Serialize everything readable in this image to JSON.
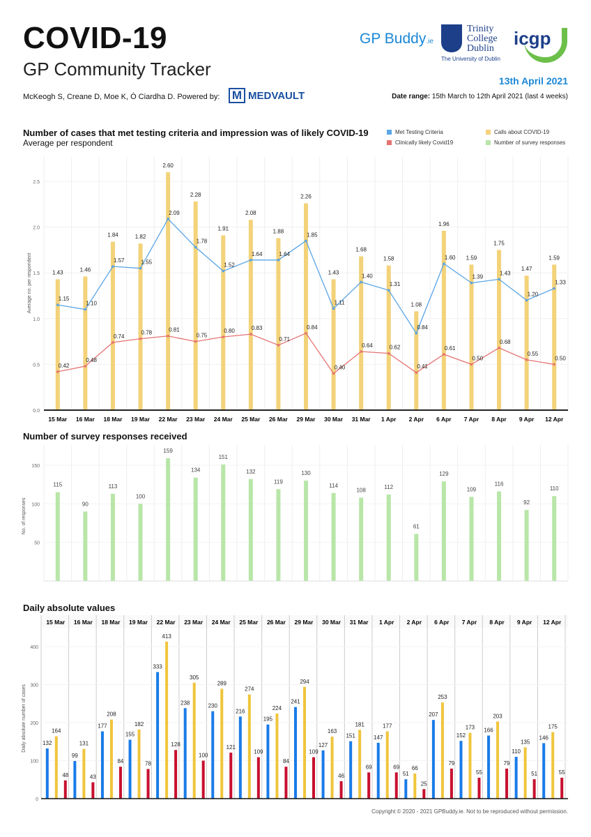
{
  "header": {
    "title": "COVID-19",
    "subtitle": "GP Community Tracker",
    "authors": "McKeogh S, Creane D, Moe K, Ó Ciardha D.  Powered by:",
    "powered_by_logo": "MEDVAULT",
    "powered_by_mark": "M",
    "report_date": "13th April 2021",
    "date_range_label": "Date range:",
    "date_range_value": "15th March to 12th April 2021 (last 4 weeks)",
    "logos": {
      "gpbuddy": "GP Buddy",
      "gpbuddy_suffix": ".ie",
      "tcd": "Trinity College Dublin",
      "tcd_sub": "The University of Dublin",
      "icgp": "icgp"
    }
  },
  "colors": {
    "blue": "#5aa5e6",
    "red": "#e57373",
    "yellow": "#f3d27a",
    "green": "#b8e6a8",
    "abs_blue": "#1a7be8",
    "abs_yellow": "#f0c53c",
    "abs_red": "#c8102e"
  },
  "legend": [
    "Met Testing Criteria",
    "Clinically likely Covid19",
    "Calls about COVID-19",
    "Number of survey responses"
  ],
  "footer": {
    "copyright": "Copyright © 2020 - 2021 GPBuddy.ie. Not to be reproduced without permission."
  },
  "chart_data": [
    {
      "type": "bar+line",
      "title": "Number of cases that met testing criteria and impression was of likely COVID-19",
      "subtitle": "Average per respondent",
      "ylabel": "Average no. per respondent",
      "ylim": [
        0,
        2.7
      ],
      "yticks": [
        "0.0",
        "0.5",
        "1.0",
        "1.5",
        "2.0",
        "2.5"
      ],
      "categories": [
        "15 Mar",
        "16 Mar",
        "18 Mar",
        "19 Mar",
        "22 Mar",
        "23 Mar",
        "24 Mar",
        "25 Mar",
        "26 Mar",
        "29 Mar",
        "30 Mar",
        "31 Mar",
        "1 Apr",
        "2 Apr",
        "6 Apr",
        "7 Apr",
        "8 Apr",
        "9 Apr",
        "12 Apr"
      ],
      "series": [
        {
          "name": "Calls about COVID-19",
          "kind": "bar",
          "values": [
            "1.43",
            "1.46",
            "1.84",
            "1.82",
            "2.60",
            "2.28",
            "1.91",
            "2.08",
            "1.88",
            "2.26",
            "1.43",
            "1.68",
            "1.58",
            "1.08",
            "1.96",
            "1.59",
            "1.75",
            "1.47",
            "1.59"
          ]
        },
        {
          "name": "Met Testing Criteria",
          "kind": "line",
          "values": [
            "1.15",
            "1.10",
            "1.57",
            "1.55",
            "2.09",
            "1.78",
            "1.52",
            "1.64",
            "1.64",
            "1.85",
            "1.11",
            "1.40",
            "1.31",
            "0.84",
            "1.60",
            "1.39",
            "1.43",
            "1.20",
            "1.33"
          ]
        },
        {
          "name": "Clinically likely Covid19",
          "kind": "line",
          "values": [
            "0.42",
            "0.48",
            "0.74",
            "0.78",
            "0.81",
            "0.75",
            "0.80",
            "0.83",
            "0.71",
            "0.84",
            "0.40",
            "0.64",
            "0.62",
            "0.41",
            "0.61",
            "0.50",
            "0.68",
            "0.55",
            "0.50"
          ]
        }
      ]
    },
    {
      "type": "bar",
      "title": "Number of survey responses received",
      "ylabel": "No. of responses",
      "ylim": [
        0,
        165
      ],
      "yticks": [
        "50",
        "100",
        "150"
      ],
      "categories": [
        "15 Mar",
        "16 Mar",
        "18 Mar",
        "19 Mar",
        "22 Mar",
        "23 Mar",
        "24 Mar",
        "25 Mar",
        "26 Mar",
        "29 Mar",
        "30 Mar",
        "31 Mar",
        "1 Apr",
        "2 Apr",
        "6 Apr",
        "7 Apr",
        "8 Apr",
        "9 Apr",
        "12 Apr"
      ],
      "values": [
        "115",
        "90",
        "113",
        "100",
        "159",
        "134",
        "151",
        "132",
        "119",
        "130",
        "114",
        "108",
        "112",
        "61",
        "129",
        "109",
        "116",
        "92",
        "110"
      ]
    },
    {
      "type": "bar",
      "title": "Daily absolute values",
      "ylabel": "Daily absolute number of cases",
      "ylim": [
        0,
        440
      ],
      "yticks": [
        "0",
        "100",
        "200",
        "300",
        "400"
      ],
      "categories": [
        "15 Mar",
        "16 Mar",
        "18 Mar",
        "19 Mar",
        "22 Mar",
        "23 Mar",
        "24 Mar",
        "25 Mar",
        "26 Mar",
        "29 Mar",
        "30 Mar",
        "31 Mar",
        "1 Apr",
        "2 Apr",
        "6 Apr",
        "7 Apr",
        "8 Apr",
        "9 Apr",
        "12 Apr"
      ],
      "series": [
        {
          "name": "Met Testing Criteria",
          "values": [
            "132",
            "99",
            "177",
            "155",
            "333",
            "238",
            "230",
            "216",
            "195",
            "241",
            "127",
            "151",
            "147",
            "51",
            "207",
            "152",
            "166",
            "110",
            "146"
          ]
        },
        {
          "name": "Calls about COVID-19",
          "values": [
            "164",
            "131",
            "208",
            "182",
            "413",
            "305",
            "289",
            "274",
            "224",
            "294",
            "163",
            "181",
            "177",
            "66",
            "253",
            "173",
            "203",
            "135",
            "175"
          ]
        },
        {
          "name": "Clinically likely Covid19",
          "values": [
            "48",
            "43",
            "84",
            "78",
            "128",
            "100",
            "121",
            "109",
            "84",
            "109",
            "46",
            "69",
            "69",
            "25",
            "79",
            "55",
            "79",
            "51",
            "55"
          ]
        }
      ]
    }
  ]
}
